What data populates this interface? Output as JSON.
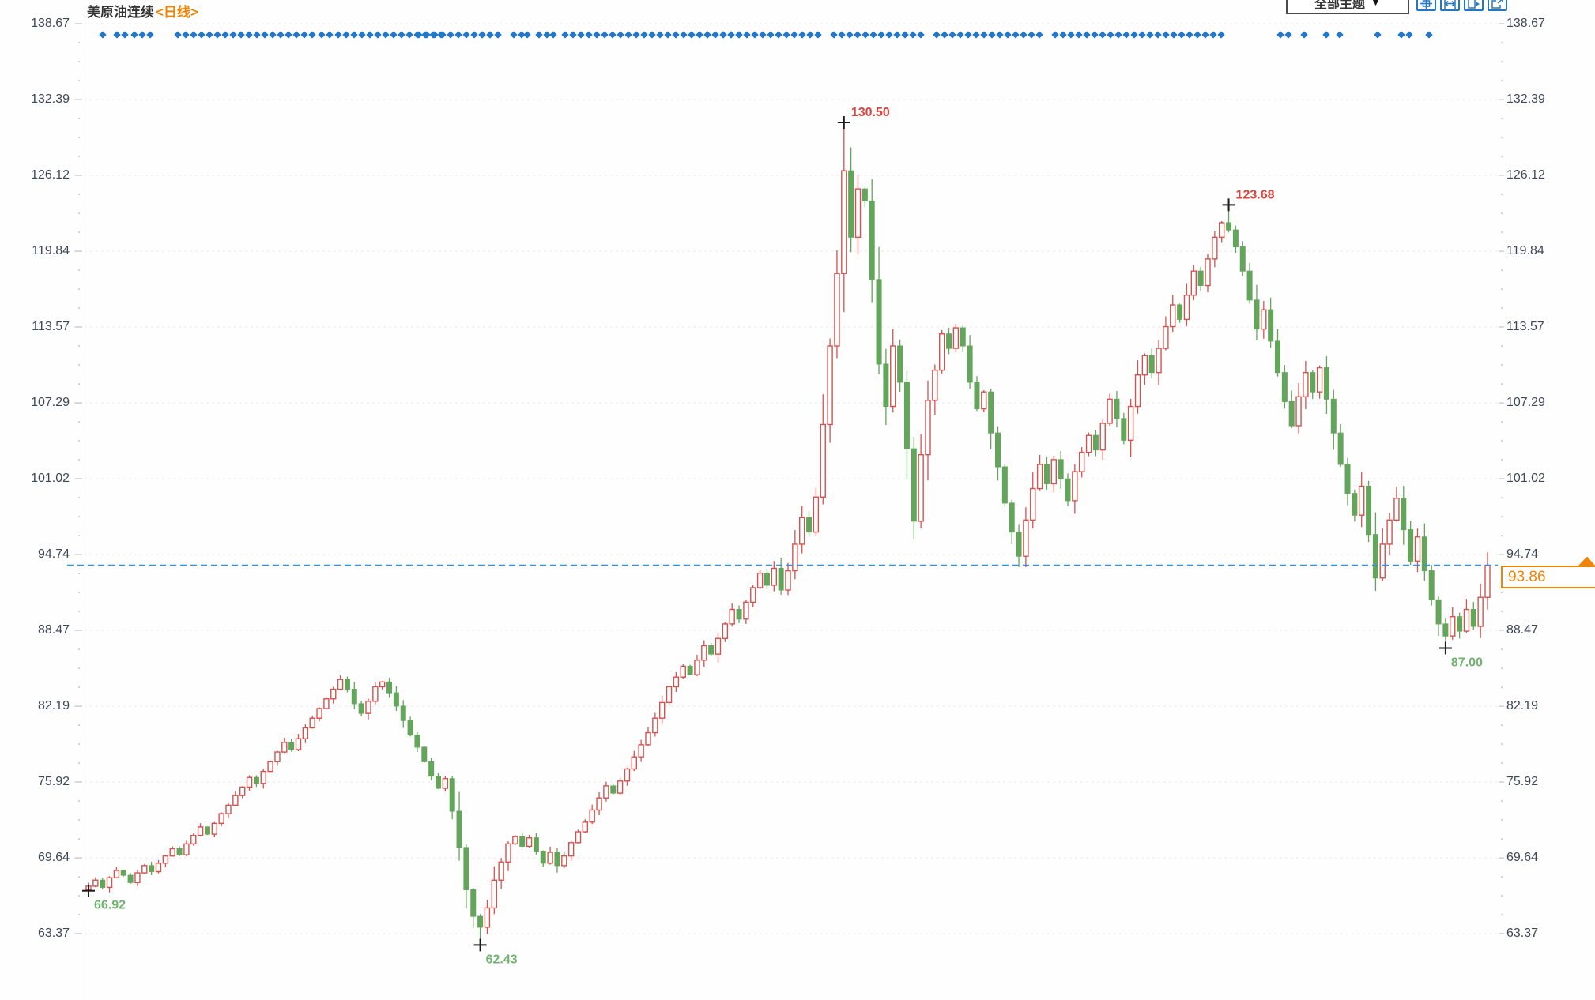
{
  "header": {
    "title": "美原油连续",
    "period_label": "<日线>",
    "theme_dropdown_label": "全部主题",
    "dropdown_arrow": "▼",
    "toolbar_icons": [
      "crosshair",
      "fit-width",
      "play-forward",
      "export"
    ]
  },
  "chart_data": {
    "type": "candlestick",
    "title": "美原油连续 <日线>",
    "xlabel": "",
    "ylabel": "",
    "y_ticks": [
      138.67,
      132.39,
      126.12,
      119.84,
      113.57,
      107.29,
      101.02,
      94.74,
      88.47,
      82.19,
      75.92,
      69.64,
      63.37
    ],
    "ylim": [
      57.9,
      140.6
    ],
    "grid": "horizontal-dashed",
    "first_open": 67.0,
    "closes": [
      67.3,
      67.8,
      67.2,
      68.0,
      68.6,
      68.2,
      67.6,
      68.4,
      69.0,
      68.5,
      69.2,
      69.8,
      70.4,
      69.9,
      70.8,
      71.5,
      72.2,
      71.6,
      72.5,
      73.3,
      74.0,
      74.8,
      75.5,
      76.3,
      75.8,
      76.8,
      77.6,
      78.4,
      79.2,
      78.6,
      79.5,
      80.4,
      81.2,
      82.0,
      82.8,
      83.6,
      84.4,
      83.6,
      82.4,
      81.6,
      82.6,
      83.8,
      84.2,
      83.3,
      82.2,
      81.0,
      79.8,
      78.8,
      77.6,
      76.4,
      75.4,
      76.2,
      73.5,
      70.5,
      67.0,
      64.8,
      63.9,
      65.5,
      67.8,
      69.3,
      70.8,
      71.4,
      70.6,
      71.3,
      70.2,
      69.2,
      70.1,
      69.0,
      69.8,
      70.9,
      71.8,
      72.6,
      73.6,
      74.6,
      75.6,
      75.0,
      76.0,
      77.0,
      78.0,
      79.0,
      80.0,
      81.2,
      82.5,
      83.8,
      84.6,
      85.5,
      84.8,
      86.0,
      87.2,
      86.5,
      87.8,
      89.0,
      90.2,
      89.4,
      90.8,
      92.0,
      93.2,
      92.2,
      93.6,
      91.8,
      93.4,
      95.6,
      97.8,
      96.6,
      99.5,
      105.5,
      112.0,
      118.0,
      126.5,
      121.0,
      125.0,
      124.0,
      117.5,
      110.5,
      107.0,
      112.0,
      109.0,
      103.5,
      97.5,
      103.0,
      107.5,
      110.0,
      113.0,
      111.8,
      113.5,
      112.0,
      109.0,
      106.8,
      108.2,
      104.8,
      102.0,
      99.0,
      96.6,
      94.6,
      97.6,
      100.2,
      102.2,
      100.6,
      102.6,
      101.0,
      99.2,
      101.6,
      103.2,
      104.6,
      103.4,
      105.6,
      107.6,
      106.0,
      104.2,
      107.0,
      109.6,
      111.2,
      109.8,
      111.8,
      113.6,
      115.4,
      114.2,
      116.2,
      118.2,
      117.0,
      119.2,
      121.0,
      122.2,
      121.6,
      120.2,
      118.2,
      115.8,
      113.4,
      115.0,
      112.4,
      109.8,
      107.4,
      105.4,
      107.8,
      109.8,
      108.2,
      110.2,
      107.6,
      104.8,
      102.2,
      99.8,
      98.0,
      100.4,
      96.4,
      92.8,
      95.6,
      97.6,
      99.4,
      96.8,
      94.2,
      96.2,
      93.4,
      91.0,
      89.0,
      88.0,
      89.6,
      88.4,
      90.2,
      88.8,
      91.2,
      93.86
    ],
    "annotations": [
      {
        "index": 0,
        "type": "low",
        "value": 66.92,
        "label": "66.92"
      },
      {
        "index": 56,
        "type": "low",
        "value": 62.43,
        "label": "62.43"
      },
      {
        "index": 108,
        "type": "high",
        "value": 130.5,
        "label": "130.50"
      },
      {
        "index": 163,
        "type": "high",
        "value": 123.68,
        "label": "123.68"
      },
      {
        "index": 194,
        "type": "low",
        "value": 87.0,
        "label": "87.00"
      }
    ],
    "last_price": {
      "value": 93.86,
      "label": "93.86"
    },
    "event_markers": {
      "y": 44,
      "spacing": 10,
      "segments": [
        [
          130,
          1
        ],
        [
          148,
          2
        ],
        [
          170,
          3
        ],
        [
          225,
          18
        ],
        [
          407,
          2
        ],
        [
          428,
          14
        ],
        [
          530,
          11
        ],
        [
          610,
          3
        ],
        [
          650,
          2
        ],
        [
          667,
          1
        ],
        [
          682,
          2
        ],
        [
          700,
          1
        ],
        [
          715,
          23
        ],
        [
          875,
          3
        ],
        [
          895,
          15
        ],
        [
          1055,
          12
        ],
        [
          1185,
          14
        ],
        [
          1335,
          22
        ],
        [
          1620,
          2
        ],
        [
          1650,
          1
        ],
        [
          1678,
          1
        ],
        [
          1695,
          1
        ],
        [
          1743,
          1
        ],
        [
          1773,
          2
        ],
        [
          1808,
          1
        ]
      ]
    },
    "colors": {
      "up_candle": "#d6524e",
      "down_candle": "#64a55c",
      "annotation_high_text": "#d9453c",
      "annotation_low_text": "#6fb36f",
      "cross_marker": "#1b1b1b",
      "current_price_line": "#3a8fd6",
      "last_price_accent": "#ef8408",
      "event_dot": "#2377c8",
      "grid_line": "#e9e9ee",
      "axis_text": "#3d4756"
    }
  }
}
